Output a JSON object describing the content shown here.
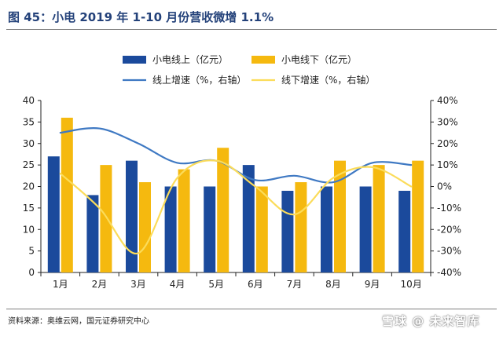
{
  "header": {
    "title": "图 45：小电 2019 年 1-10 月份营收微增 1.1%"
  },
  "footer": {
    "source": "资料来源：奥维云网，国元证券研究中心",
    "watermark": "雪球 @ 未来智库"
  },
  "colors": {
    "online": "#1b4a9c",
    "offline": "#f5b90f",
    "online_growth": "#3f79c3",
    "offline_growth": "#fbdc5a"
  },
  "chart_data": {
    "type": "bar",
    "categories": [
      "1月",
      "2月",
      "3月",
      "4月",
      "5月",
      "6月",
      "7月",
      "8月",
      "9月",
      "10月"
    ],
    "series": [
      {
        "name": "小电线上（亿元）",
        "kind": "bar",
        "axis": "left",
        "values": [
          27,
          18,
          26,
          20,
          20,
          25,
          19,
          20,
          20,
          19
        ]
      },
      {
        "name": "小电线下（亿元）",
        "kind": "bar",
        "axis": "left",
        "values": [
          36,
          25,
          21,
          24,
          29,
          20,
          21,
          26,
          25,
          26
        ]
      },
      {
        "name": "线上增速（%，右轴）",
        "kind": "line",
        "axis": "right",
        "values": [
          25,
          27,
          20,
          11,
          12,
          3,
          5,
          2,
          11,
          10
        ]
      },
      {
        "name": "线下增速（%，右轴）",
        "kind": "line",
        "axis": "right",
        "values": [
          6,
          -10,
          -31,
          4,
          12,
          0,
          -13,
          4,
          9,
          0
        ]
      }
    ],
    "ylim": [
      0,
      40
    ],
    "y_ticks": [
      "0",
      "5",
      "10",
      "15",
      "20",
      "25",
      "30",
      "35",
      "40"
    ],
    "y2lim": [
      -40,
      40
    ],
    "y2_ticks": [
      "-40%",
      "-30%",
      "-20%",
      "-10%",
      "0%",
      "10%",
      "20%",
      "30%",
      "40%"
    ],
    "legend_position": "top",
    "grid": false
  }
}
